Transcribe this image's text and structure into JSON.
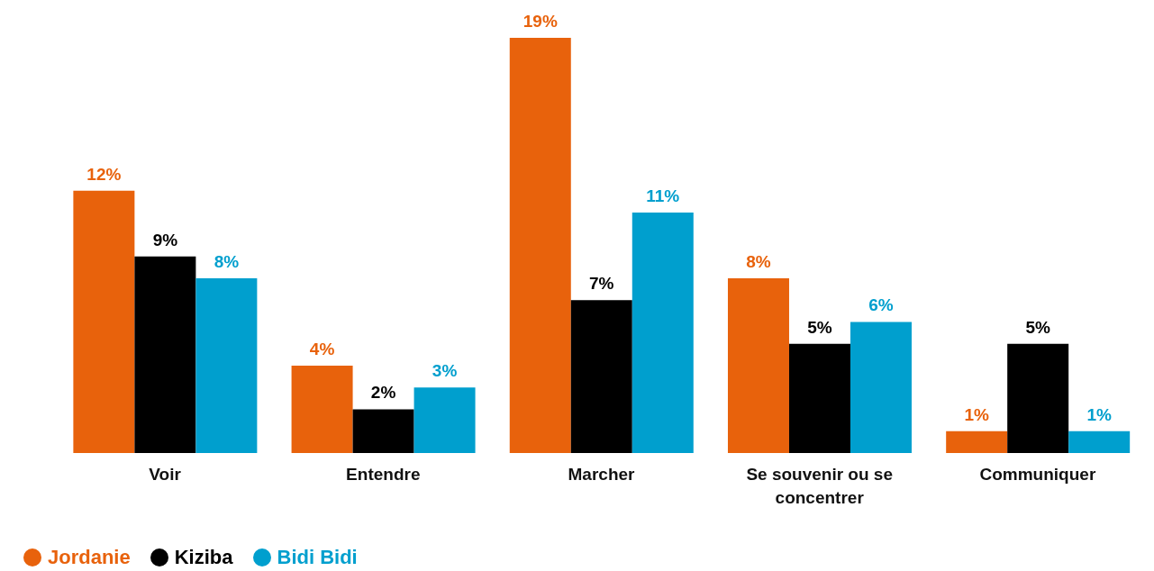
{
  "chart_data": {
    "type": "bar",
    "categories": [
      "Voir",
      "Entendre",
      "Marcher",
      "Se souvenir ou se concentrer",
      "Communiquer"
    ],
    "series": [
      {
        "name": "Jordanie",
        "color": "#e8620c",
        "values": [
          12,
          4,
          19,
          8,
          1
        ],
        "value_labels": [
          "12%",
          "4%",
          "19%",
          "8%",
          "1%"
        ]
      },
      {
        "name": "Kiziba",
        "color": "#000000",
        "values": [
          9,
          2,
          7,
          5,
          5
        ],
        "value_labels": [
          "9%",
          "2%",
          "7%",
          "5%",
          "5%"
        ]
      },
      {
        "name": "Bidi Bidi",
        "color": "#009fce",
        "values": [
          8,
          3,
          11,
          6,
          1
        ],
        "value_labels": [
          "8%",
          "3%",
          "11%",
          "6%",
          "1%"
        ]
      }
    ],
    "legend": "bottom left",
    "grid": false
  }
}
